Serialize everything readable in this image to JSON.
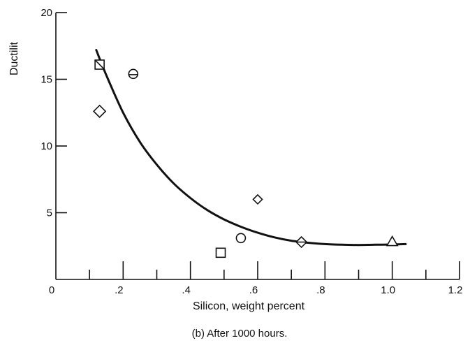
{
  "chart_data": {
    "type": "scatter",
    "caption": "(b) After 1000 hours.",
    "xlabel": "Silicon, weight percent",
    "ylabel": "Ductilit",
    "xlim": [
      0,
      1.2
    ],
    "ylim": [
      0,
      20
    ],
    "x_ticks": [
      {
        "value": 0,
        "label": "0"
      },
      {
        "value": 0.2,
        "label": ".2"
      },
      {
        "value": 0.4,
        "label": ".4"
      },
      {
        "value": 0.6,
        "label": ".6"
      },
      {
        "value": 0.8,
        "label": ".8"
      },
      {
        "value": 1.0,
        "label": "1.0"
      },
      {
        "value": 1.2,
        "label": "1.2"
      }
    ],
    "x_minor_ticks": [
      0.1,
      0.3,
      0.5,
      0.7,
      0.9,
      1.1
    ],
    "y_ticks": [
      {
        "value": 5,
        "label": "5"
      },
      {
        "value": 10,
        "label": "10"
      },
      {
        "value": 15,
        "label": "15"
      },
      {
        "value": 20,
        "label": "20"
      }
    ],
    "points": [
      {
        "x": 0.13,
        "y": 16.1,
        "marker": "square-flagged"
      },
      {
        "x": 0.13,
        "y": 12.6,
        "marker": "diamond"
      },
      {
        "x": 0.23,
        "y": 15.4,
        "marker": "circle-flagged"
      },
      {
        "x": 0.49,
        "y": 2.0,
        "marker": "square"
      },
      {
        "x": 0.55,
        "y": 3.1,
        "marker": "circle"
      },
      {
        "x": 0.6,
        "y": 6.0,
        "marker": "diamond-small"
      },
      {
        "x": 0.73,
        "y": 2.8,
        "marker": "diamond-flagged"
      },
      {
        "x": 1.0,
        "y": 2.8,
        "marker": "triangle"
      }
    ],
    "curve": {
      "x": [
        0.12,
        0.15,
        0.2,
        0.25,
        0.3,
        0.35,
        0.4,
        0.45,
        0.5,
        0.55,
        0.6,
        0.65,
        0.7,
        0.75,
        0.8,
        0.85,
        0.9,
        0.95,
        1.0,
        1.04
      ],
      "y": [
        17.2,
        15.3,
        12.5,
        10.3,
        8.6,
        7.2,
        6.1,
        5.2,
        4.5,
        3.95,
        3.5,
        3.15,
        2.9,
        2.75,
        2.65,
        2.6,
        2.58,
        2.6,
        2.62,
        2.65
      ]
    },
    "grid": false,
    "legend": "none"
  }
}
